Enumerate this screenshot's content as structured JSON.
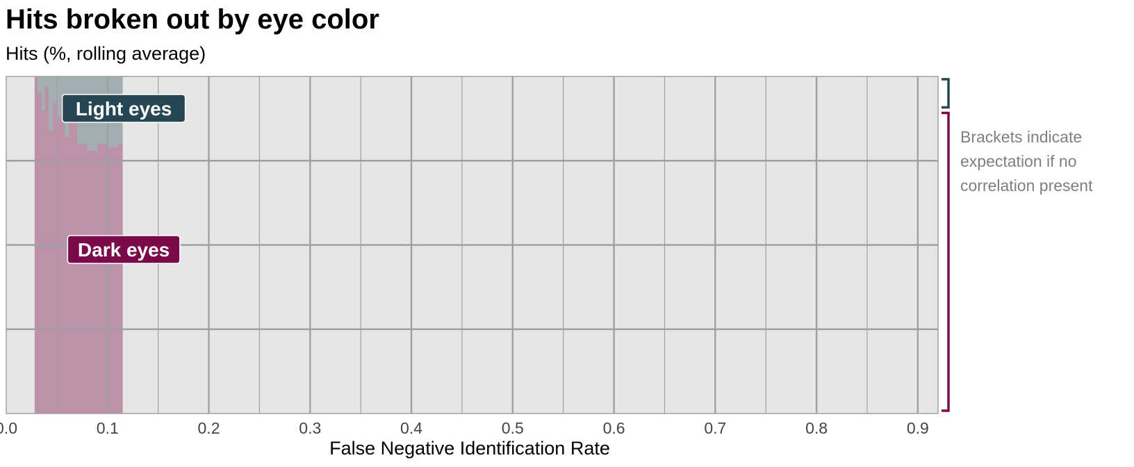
{
  "chart_data": {
    "type": "area",
    "title": "Hits broken out by eye color",
    "subtitle": "Hits (%, rolling average)",
    "xlabel": "False Negative Identification Rate",
    "ylabel": "",
    "xlim": [
      0.0,
      0.92
    ],
    "x_ticks": [
      "0.0",
      "0.1",
      "0.2",
      "0.3",
      "0.4",
      "0.5",
      "0.6",
      "0.7",
      "0.8",
      "0.9"
    ],
    "x_tick_values": [
      0.0,
      0.1,
      0.2,
      0.3,
      0.4,
      0.5,
      0.6,
      0.7,
      0.8,
      0.9
    ],
    "grid": true,
    "stacked_percent": true,
    "series": [
      {
        "name": "Light eyes",
        "color": "#264653",
        "x": [
          0.028,
          0.031,
          0.035,
          0.038,
          0.042,
          0.046,
          0.05,
          0.054,
          0.058,
          0.062,
          0.07,
          0.08,
          0.09,
          0.1,
          0.11,
          0.115
        ],
        "share": [
          0.0,
          0.05,
          0.1,
          0.03,
          0.16,
          0.08,
          0.12,
          0.06,
          0.18,
          0.12,
          0.2,
          0.22,
          0.2,
          0.21,
          0.2,
          0.2
        ]
      },
      {
        "name": "Dark eyes",
        "color": "#7a0a4a",
        "x": [
          0.028,
          0.031,
          0.035,
          0.038,
          0.042,
          0.046,
          0.05,
          0.054,
          0.058,
          0.062,
          0.07,
          0.08,
          0.09,
          0.1,
          0.11,
          0.115
        ],
        "share": [
          1.0,
          0.95,
          0.9,
          0.97,
          0.84,
          0.92,
          0.88,
          0.94,
          0.82,
          0.88,
          0.8,
          0.78,
          0.8,
          0.79,
          0.8,
          0.8
        ]
      }
    ],
    "brackets": [
      {
        "series": "Light eyes",
        "expected_share": 0.1,
        "color": "#264653"
      },
      {
        "series": "Dark eyes",
        "expected_share": 0.9,
        "color": "#7a0a4a"
      }
    ],
    "annotation": "Brackets indicate expectation if no correlation present",
    "annotation_lines": [
      "Brackets indicate",
      "expectation if no",
      "correlation present"
    ],
    "colors": {
      "panel": "#e6e6e6",
      "grid": "#a0a0a0",
      "annotation": "#7f7f7f"
    }
  }
}
